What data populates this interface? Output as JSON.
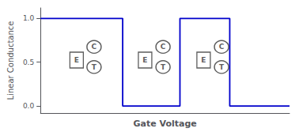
{
  "chart_data": {
    "type": "line",
    "xlabel": "Gate Voltage",
    "ylabel": "Linear Conductance",
    "x": [
      0,
      0.33,
      0.33,
      0.56,
      0.56,
      0.76,
      0.76,
      1.0
    ],
    "values": [
      1.0,
      1.0,
      0.0,
      0.0,
      1.0,
      1.0,
      0.0,
      0.0
    ],
    "color": "#0000cc",
    "xlim": [
      0.0,
      1.0
    ],
    "ylim": [
      -0.08,
      1.12
    ],
    "yticks": [
      {
        "value": 0.0,
        "label": "0.0"
      },
      0.5,
      {
        "value": 1.0,
        "label": "1.0"
      }
    ],
    "tick_labels": "y",
    "grid": false,
    "annotations": [
      {
        "text": "E",
        "x": 0.145,
        "y": 0.525
      },
      {
        "text": "C",
        "x": 0.215,
        "y": 0.675
      },
      {
        "text": "T",
        "x": 0.215,
        "y": 0.445
      },
      {
        "text": "E",
        "x": 0.42,
        "y": 0.525
      },
      {
        "text": "C",
        "x": 0.492,
        "y": 0.675
      },
      {
        "text": "T",
        "x": 0.492,
        "y": 0.445
      },
      {
        "text": "E",
        "x": 0.655,
        "y": 0.525
      },
      {
        "text": "C",
        "x": 0.727,
        "y": 0.675
      },
      {
        "text": "T",
        "x": 0.727,
        "y": 0.445
      }
    ]
  }
}
